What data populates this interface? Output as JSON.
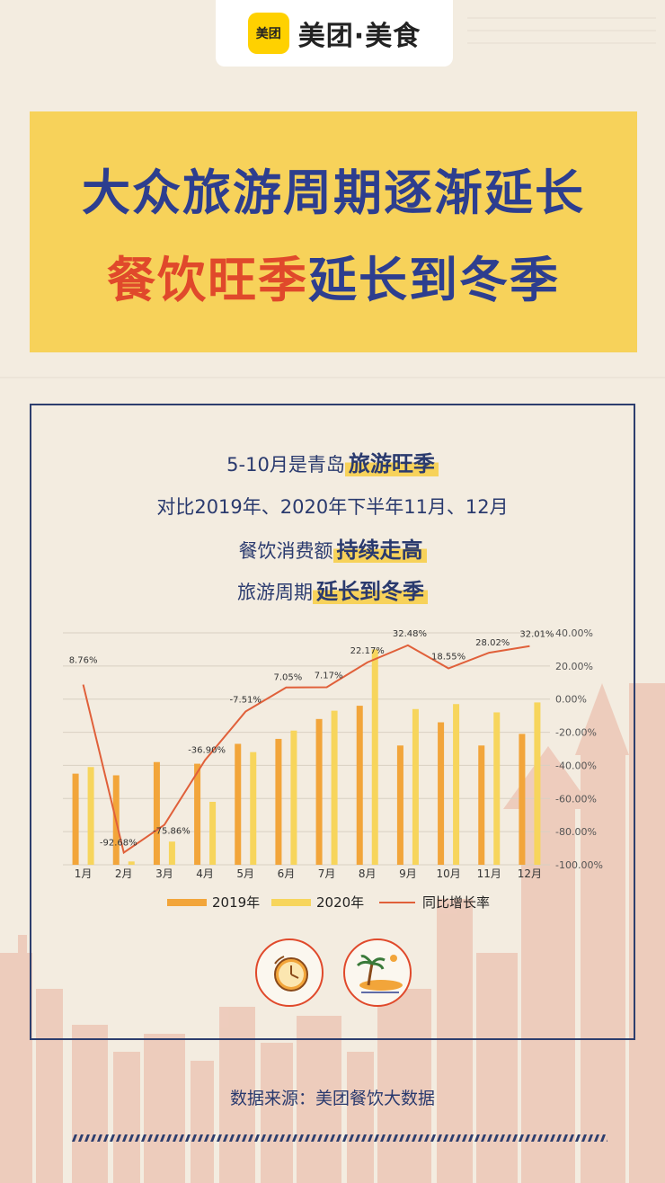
{
  "brand": {
    "badge": "美团",
    "name": "美团·美食"
  },
  "title": {
    "line1": "大众旅游周期逐渐延长",
    "line2_red": "餐饮旺季",
    "line2_blue": "延长到冬季"
  },
  "intro": [
    {
      "plain": "5-10月是青岛",
      "highlight": "旅游旺季"
    },
    {
      "plain": "对比2019年、2020年下半年11月、12月",
      "highlight": ""
    },
    {
      "plain": "餐饮消费额",
      "highlight": "持续走高"
    },
    {
      "plain": "旅游周期",
      "highlight": "延长到冬季"
    }
  ],
  "colors": {
    "bar2019": "#f2a53a",
    "bar2020": "#f7d55c",
    "line": "#e0603a",
    "navy": "#2d3e8f",
    "red": "#e0492b"
  },
  "chart_data": {
    "type": "bar",
    "categories": [
      "1月",
      "2月",
      "3月",
      "4月",
      "5月",
      "6月",
      "7月",
      "8月",
      "9月",
      "10月",
      "11月",
      "12月"
    ],
    "series": [
      {
        "name": "2019年",
        "kind": "bar",
        "values": [
          55,
          54,
          62,
          61,
          73,
          76,
          88,
          96,
          72,
          86,
          72,
          79
        ]
      },
      {
        "name": "2020年",
        "kind": "bar",
        "values": [
          59,
          2,
          14,
          38,
          68,
          81,
          93,
          130,
          94,
          97,
          92,
          98
        ]
      },
      {
        "name": "同比增长率",
        "kind": "line",
        "axis": "right",
        "values": [
          8.76,
          -92.68,
          -75.86,
          -36.9,
          -7.51,
          7.05,
          7.17,
          22.17,
          32.48,
          18.55,
          28.02,
          32.01
        ],
        "labels": [
          "8.76%",
          "-92.68%",
          "-75.86%",
          "-36.90%",
          "-7.51%",
          "7.05%",
          "7.17%",
          "22.17%",
          "32.48%",
          "18.55%",
          "28.02%",
          "32.01%"
        ]
      }
    ],
    "y_left_range": [
      0,
      140
    ],
    "y_right_ticks": [
      "40.00%",
      "20.00%",
      "0.00%",
      "-20.00%",
      "-40.00%",
      "-60.00%",
      "-80.00%",
      "-100.00%"
    ],
    "y_right_values": [
      40,
      20,
      0,
      -20,
      -40,
      -60,
      -80,
      -100
    ],
    "grid": true,
    "legend_position": "bottom"
  },
  "icons": [
    "clock-icon",
    "island-icon"
  ],
  "source": "数据来源：美团餐饮大数据"
}
